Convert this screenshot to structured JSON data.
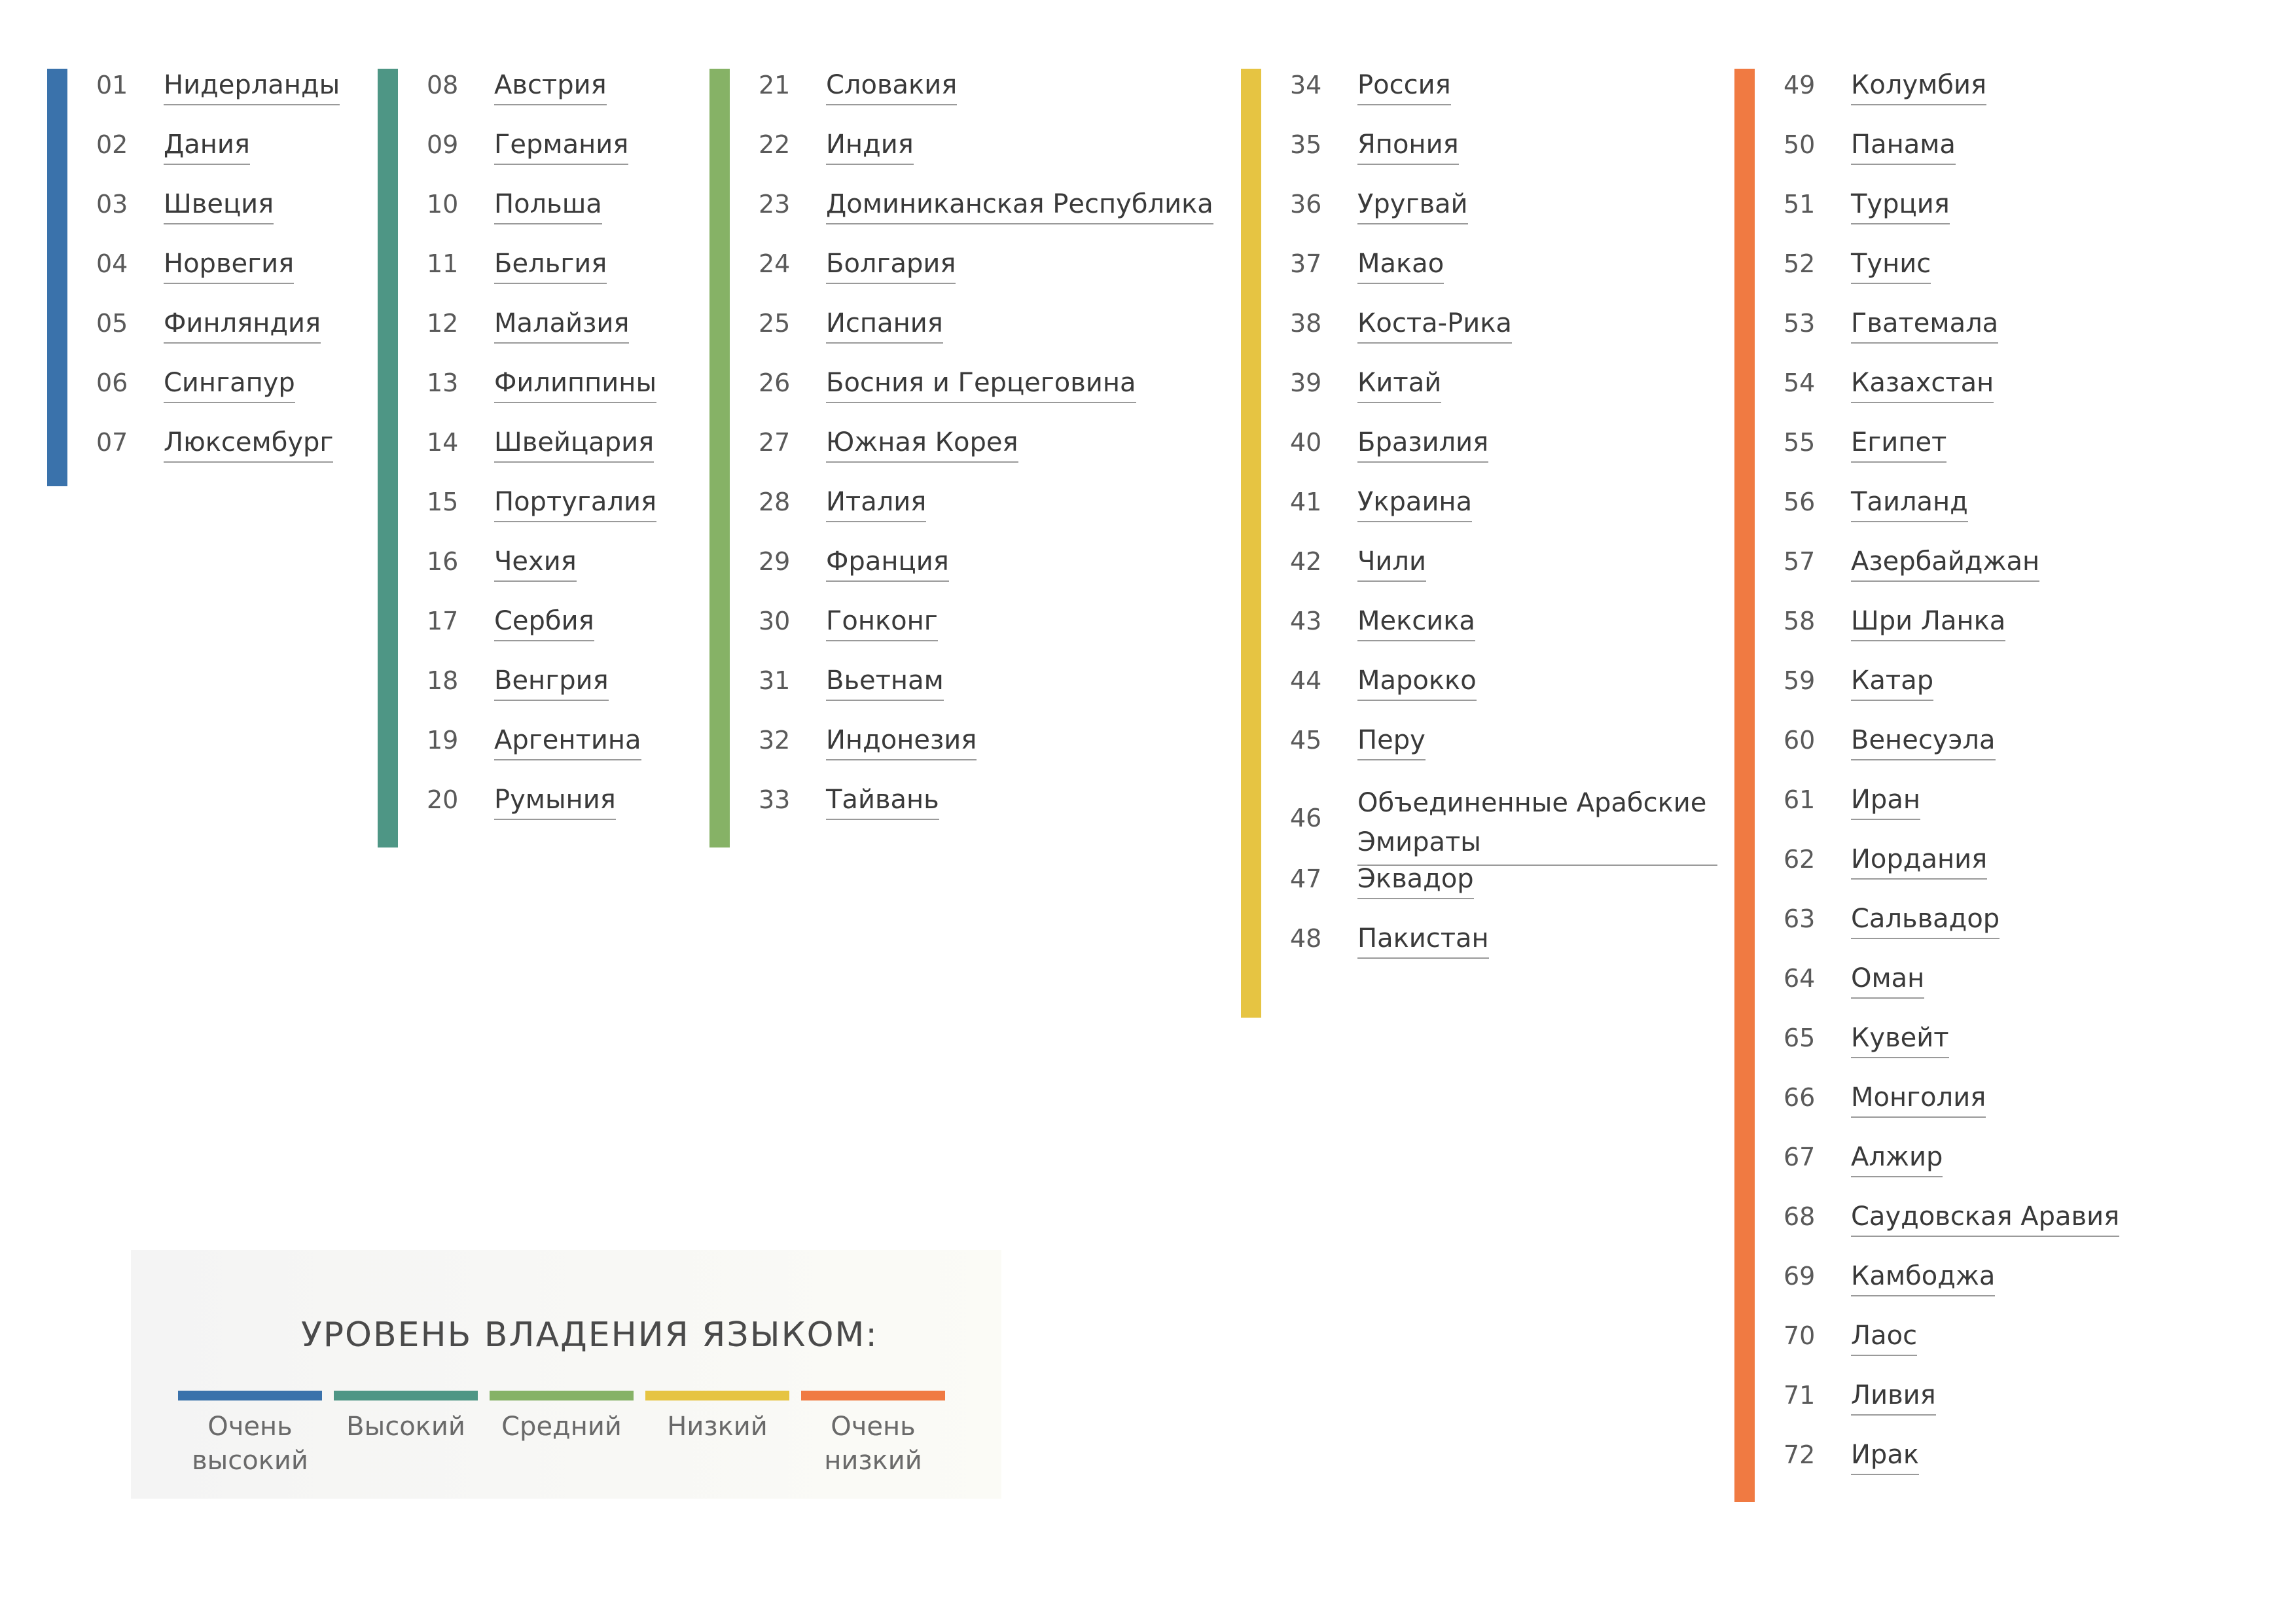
{
  "colors": {
    "very_high": "#3a72ab",
    "high": "#4e9685",
    "medium": "#86b266",
    "low": "#e6c442",
    "very_low": "#f07a42"
  },
  "groups": [
    {
      "level": "very_high",
      "items": [
        {
          "num": "01",
          "name": "Нидерланды"
        },
        {
          "num": "02",
          "name": "Дания"
        },
        {
          "num": "03",
          "name": "Швеция"
        },
        {
          "num": "04",
          "name": "Норвегия"
        },
        {
          "num": "05",
          "name": "Финляндия"
        },
        {
          "num": "06",
          "name": "Сингапур"
        },
        {
          "num": "07",
          "name": "Люксембург"
        }
      ]
    },
    {
      "level": "high",
      "items": [
        {
          "num": "08",
          "name": "Австрия"
        },
        {
          "num": "09",
          "name": "Германия"
        },
        {
          "num": "10",
          "name": "Польша"
        },
        {
          "num": "11",
          "name": "Бельгия"
        },
        {
          "num": "12",
          "name": "Малайзия"
        },
        {
          "num": "13",
          "name": "Филиппины"
        },
        {
          "num": "14",
          "name": "Швейцария"
        },
        {
          "num": "15",
          "name": "Португалия"
        },
        {
          "num": "16",
          "name": "Чехия"
        },
        {
          "num": "17",
          "name": "Сербия"
        },
        {
          "num": "18",
          "name": "Венгрия"
        },
        {
          "num": "19",
          "name": "Аргентина"
        },
        {
          "num": "20",
          "name": "Румыния"
        }
      ]
    },
    {
      "level": "medium",
      "items": [
        {
          "num": "21",
          "name": "Словакия"
        },
        {
          "num": "22",
          "name": "Индия"
        },
        {
          "num": "23",
          "name": "Доминиканская Республика"
        },
        {
          "num": "24",
          "name": "Болгария"
        },
        {
          "num": "25",
          "name": "Испания"
        },
        {
          "num": "26",
          "name": "Босния и Герцеговина"
        },
        {
          "num": "27",
          "name": "Южная Корея"
        },
        {
          "num": "28",
          "name": "Италия"
        },
        {
          "num": "29",
          "name": "Франция"
        },
        {
          "num": "30",
          "name": "Гонконг"
        },
        {
          "num": "31",
          "name": "Вьетнам"
        },
        {
          "num": "32",
          "name": "Индонезия"
        },
        {
          "num": "33",
          "name": "Тайвань"
        }
      ]
    },
    {
      "level": "low",
      "items": [
        {
          "num": "34",
          "name": "Россия"
        },
        {
          "num": "35",
          "name": "Япония"
        },
        {
          "num": "36",
          "name": "Уругвай"
        },
        {
          "num": "37",
          "name": "Макао"
        },
        {
          "num": "38",
          "name": "Коста-Рика"
        },
        {
          "num": "39",
          "name": "Китай"
        },
        {
          "num": "40",
          "name": "Бразилия"
        },
        {
          "num": "41",
          "name": "Украина"
        },
        {
          "num": "42",
          "name": "Чили"
        },
        {
          "num": "43",
          "name": "Мексика"
        },
        {
          "num": "44",
          "name": "Марокко"
        },
        {
          "num": "45",
          "name": "Перу"
        },
        {
          "num": "46",
          "name": "Объединенные Арабские Эмираты"
        },
        {
          "num": "47",
          "name": "Эквадор"
        },
        {
          "num": "48",
          "name": "Пакистан"
        }
      ]
    },
    {
      "level": "very_low",
      "items": [
        {
          "num": "49",
          "name": "Колумбия"
        },
        {
          "num": "50",
          "name": "Панама"
        },
        {
          "num": "51",
          "name": "Турция"
        },
        {
          "num": "52",
          "name": "Тунис"
        },
        {
          "num": "53",
          "name": "Гватемала"
        },
        {
          "num": "54",
          "name": "Казахстан"
        },
        {
          "num": "55",
          "name": "Египет"
        },
        {
          "num": "56",
          "name": "Таиланд"
        },
        {
          "num": "57",
          "name": "Азербайджан"
        },
        {
          "num": "58",
          "name": "Шри Ланка"
        },
        {
          "num": "59",
          "name": "Катар"
        },
        {
          "num": "60",
          "name": "Венесуэла"
        },
        {
          "num": "61",
          "name": "Иран"
        },
        {
          "num": "62",
          "name": "Иордания"
        },
        {
          "num": "63",
          "name": "Сальвадор"
        },
        {
          "num": "64",
          "name": "Оман"
        },
        {
          "num": "65",
          "name": "Кувейт"
        },
        {
          "num": "66",
          "name": "Монголия"
        },
        {
          "num": "67",
          "name": "Алжир"
        },
        {
          "num": "68",
          "name": "Саудовская Аравия"
        },
        {
          "num": "69",
          "name": "Камбоджа"
        },
        {
          "num": "70",
          "name": "Лаос"
        },
        {
          "num": "71",
          "name": "Ливия"
        },
        {
          "num": "72",
          "name": "Ирак"
        }
      ]
    }
  ],
  "legend": {
    "title": "УРОВЕНЬ ВЛАДЕНИЯ ЯЗЫКОМ:",
    "items": [
      {
        "level": "very_high",
        "label": "Очень высокий"
      },
      {
        "level": "high",
        "label": "Высокий"
      },
      {
        "level": "medium",
        "label": "Средний"
      },
      {
        "level": "low",
        "label": "Низкий"
      },
      {
        "level": "very_low",
        "label": "Очень низкий"
      }
    ]
  }
}
